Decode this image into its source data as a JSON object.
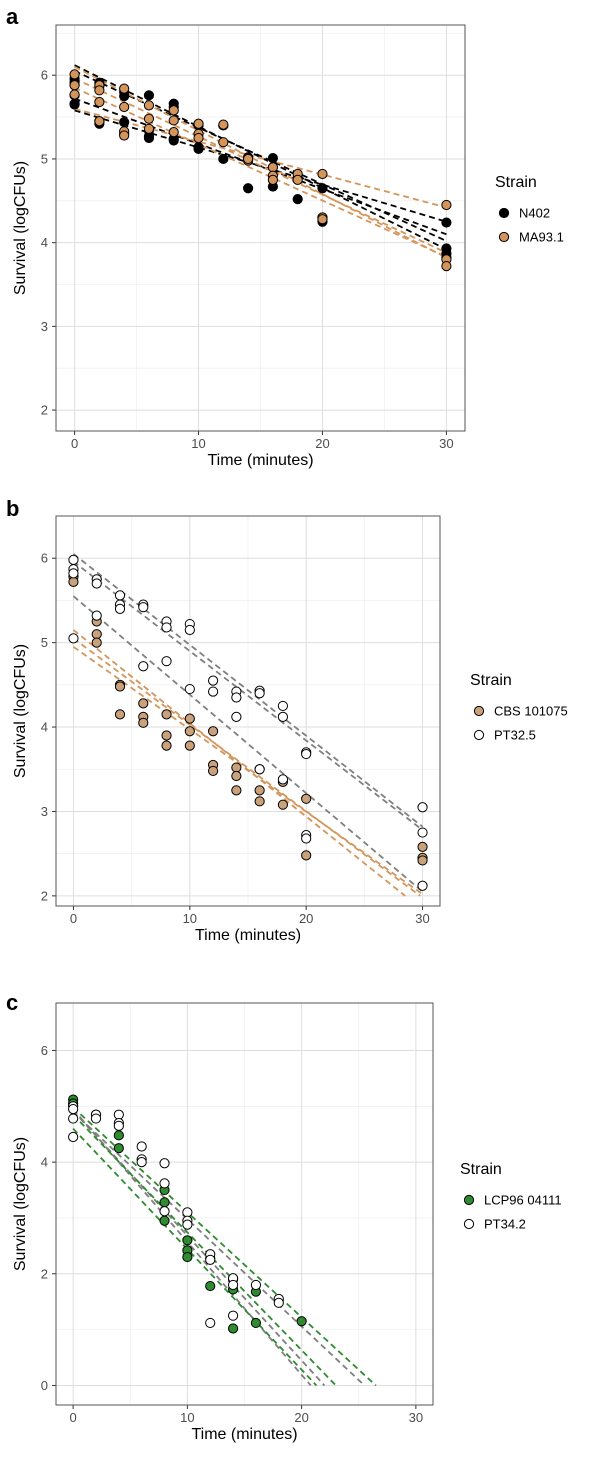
{
  "chart_data": [
    {
      "type": "scatter",
      "panel_label": "a",
      "xlabel": "Time (minutes)",
      "ylabel": "Survival (logCFUs)",
      "xlim": [
        -1.5,
        31.5
      ],
      "ylim": [
        1.75,
        6.6
      ],
      "xticks": [
        0,
        10,
        20,
        30
      ],
      "yticks": [
        2,
        3,
        4,
        5,
        6
      ],
      "grid": true,
      "legend": {
        "title": "Strain",
        "position": "right"
      },
      "series": [
        {
          "name": "N402",
          "fill": "#000000",
          "stroke": "#000000",
          "points": [
            [
              0,
              5.96
            ],
            [
              0,
              5.92
            ],
            [
              0,
              5.88
            ],
            [
              0,
              5.65
            ],
            [
              0,
              5.66
            ],
            [
              2,
              5.91
            ],
            [
              2,
              5.87
            ],
            [
              2,
              5.45
            ],
            [
              2,
              5.42
            ],
            [
              4,
              5.8
            ],
            [
              4,
              5.75
            ],
            [
              4,
              5.44
            ],
            [
              4,
              5.3
            ],
            [
              6,
              5.76
            ],
            [
              6,
              5.34
            ],
            [
              6,
              5.27
            ],
            [
              6,
              5.25
            ],
            [
              8,
              5.66
            ],
            [
              8,
              5.62
            ],
            [
              8,
              5.22
            ],
            [
              8,
              5.24
            ],
            [
              10,
              5.4
            ],
            [
              10,
              5.14
            ],
            [
              10,
              5.12
            ],
            [
              12,
              5.4
            ],
            [
              12,
              5.0
            ],
            [
              14,
              5.02
            ],
            [
              14,
              4.65
            ],
            [
              16,
              5.01
            ],
            [
              16,
              4.9
            ],
            [
              16,
              4.67
            ],
            [
              18,
              4.77
            ],
            [
              18,
              4.52
            ],
            [
              20,
              4.65
            ],
            [
              20,
              4.3
            ],
            [
              20,
              4.25
            ],
            [
              30,
              4.24
            ],
            [
              30,
              3.93
            ],
            [
              30,
              3.87
            ],
            [
              30,
              3.82
            ]
          ]
        },
        {
          "name": "MA93.1",
          "fill": "#d4955a",
          "stroke": "#000000",
          "points": [
            [
              0,
              6.01
            ],
            [
              0,
              5.88
            ],
            [
              0,
              5.76
            ],
            [
              0,
              5.77
            ],
            [
              2,
              5.88
            ],
            [
              2,
              5.82
            ],
            [
              2,
              5.68
            ],
            [
              2,
              5.45
            ],
            [
              4,
              5.84
            ],
            [
              4,
              5.62
            ],
            [
              4,
              5.33
            ],
            [
              4,
              5.28
            ],
            [
              6,
              5.64
            ],
            [
              6,
              5.48
            ],
            [
              6,
              5.36
            ],
            [
              8,
              5.58
            ],
            [
              8,
              5.46
            ],
            [
              8,
              5.32
            ],
            [
              10,
              5.42
            ],
            [
              10,
              5.3
            ],
            [
              10,
              5.25
            ],
            [
              12,
              5.41
            ],
            [
              12,
              5.2
            ],
            [
              14,
              4.98
            ],
            [
              14,
              5.0
            ],
            [
              16,
              4.9
            ],
            [
              16,
              4.8
            ],
            [
              16,
              4.75
            ],
            [
              18,
              4.82
            ],
            [
              18,
              4.75
            ],
            [
              20,
              4.82
            ],
            [
              20,
              4.3
            ],
            [
              20,
              4.28
            ],
            [
              30,
              4.45
            ],
            [
              30,
              3.8
            ],
            [
              30,
              3.72
            ]
          ]
        }
      ],
      "fit_lines": [
        {
          "color": "#000000",
          "x": [
            0,
            30
          ],
          "y": [
            6.12,
            3.92
          ]
        },
        {
          "color": "#000000",
          "x": [
            0,
            30
          ],
          "y": [
            6.05,
            4.02
          ]
        },
        {
          "color": "#000000",
          "x": [
            0,
            30
          ],
          "y": [
            5.72,
            4.1
          ]
        },
        {
          "color": "#000000",
          "x": [
            0,
            30
          ],
          "y": [
            5.58,
            4.25
          ]
        },
        {
          "color": "#d4955a",
          "x": [
            0,
            30
          ],
          "y": [
            6.1,
            3.82
          ]
        },
        {
          "color": "#d4955a",
          "x": [
            0,
            30
          ],
          "y": [
            5.96,
            3.88
          ]
        },
        {
          "color": "#d4955a",
          "x": [
            0,
            30
          ],
          "y": [
            5.85,
            3.83
          ]
        },
        {
          "color": "#d4955a",
          "x": [
            0,
            30
          ],
          "y": [
            5.6,
            4.42
          ]
        }
      ]
    },
    {
      "type": "scatter",
      "panel_label": "b",
      "xlabel": "Time (minutes)",
      "ylabel": "Survival (logCFUs)",
      "xlim": [
        -1.5,
        31.5
      ],
      "ylim": [
        1.88,
        6.5
      ],
      "xticks": [
        0,
        10,
        20,
        30
      ],
      "yticks": [
        2,
        3,
        4,
        5,
        6
      ],
      "grid": true,
      "legend": {
        "title": "Strain",
        "position": "right"
      },
      "series": [
        {
          "name": "CBS 101075",
          "fill": "#c9a27c",
          "stroke": "#000000",
          "points": [
            [
              0,
              5.78
            ],
            [
              0,
              5.72
            ],
            [
              2,
              5.25
            ],
            [
              2,
              5.1
            ],
            [
              2,
              5.0
            ],
            [
              4,
              4.5
            ],
            [
              4,
              4.48
            ],
            [
              4,
              4.15
            ],
            [
              6,
              4.28
            ],
            [
              6,
              4.12
            ],
            [
              6,
              4.05
            ],
            [
              8,
              4.15
            ],
            [
              8,
              3.9
            ],
            [
              8,
              3.78
            ],
            [
              10,
              4.1
            ],
            [
              10,
              3.95
            ],
            [
              10,
              3.78
            ],
            [
              12,
              3.95
            ],
            [
              12,
              3.55
            ],
            [
              12,
              3.48
            ],
            [
              14,
              3.52
            ],
            [
              14,
              3.42
            ],
            [
              14,
              3.25
            ],
            [
              16,
              3.5
            ],
            [
              16,
              3.25
            ],
            [
              16,
              3.12
            ],
            [
              18,
              3.35
            ],
            [
              18,
              3.08
            ],
            [
              20,
              3.15
            ],
            [
              20,
              2.48
            ],
            [
              30,
              2.58
            ],
            [
              30,
              2.45
            ],
            [
              30,
              2.42
            ]
          ]
        },
        {
          "name": "PT32.5",
          "fill": "#ffffff",
          "stroke": "#000000",
          "points": [
            [
              0,
              5.98
            ],
            [
              0,
              5.87
            ],
            [
              0,
              5.82
            ],
            [
              0,
              5.05
            ],
            [
              2,
              5.75
            ],
            [
              2,
              5.7
            ],
            [
              2,
              5.32
            ],
            [
              4,
              5.56
            ],
            [
              4,
              5.45
            ],
            [
              4,
              5.4
            ],
            [
              6,
              5.45
            ],
            [
              6,
              5.42
            ],
            [
              6,
              4.72
            ],
            [
              8,
              5.25
            ],
            [
              8,
              5.18
            ],
            [
              8,
              4.78
            ],
            [
              10,
              5.22
            ],
            [
              10,
              5.15
            ],
            [
              10,
              4.45
            ],
            [
              12,
              4.55
            ],
            [
              12,
              4.42
            ],
            [
              14,
              4.42
            ],
            [
              14,
              4.35
            ],
            [
              14,
              4.12
            ],
            [
              16,
              4.43
            ],
            [
              16,
              4.4
            ],
            [
              16,
              3.5
            ],
            [
              18,
              4.25
            ],
            [
              18,
              4.12
            ],
            [
              18,
              3.38
            ],
            [
              20,
              3.7
            ],
            [
              20,
              3.68
            ],
            [
              20,
              2.72
            ],
            [
              20,
              2.68
            ],
            [
              30,
              3.05
            ],
            [
              30,
              2.75
            ],
            [
              30,
              2.12
            ]
          ]
        }
      ],
      "fit_lines": [
        {
          "color": "#7f7f7f",
          "x": [
            0,
            30
          ],
          "y": [
            6.05,
            2.82
          ]
        },
        {
          "color": "#7f7f7f",
          "x": [
            0,
            30
          ],
          "y": [
            5.96,
            2.78
          ]
        },
        {
          "color": "#7f7f7f",
          "x": [
            0,
            30
          ],
          "y": [
            5.55,
            2.05
          ]
        },
        {
          "color": "#d4955a",
          "x": [
            0,
            28.5
          ],
          "y": [
            5.15,
            2.0
          ]
        },
        {
          "color": "#d4955a",
          "x": [
            0,
            29.8
          ],
          "y": [
            5.05,
            2.0
          ]
        },
        {
          "color": "#d4955a",
          "x": [
            0,
            30
          ],
          "y": [
            4.95,
            2.02
          ]
        }
      ]
    },
    {
      "type": "scatter",
      "panel_label": "c",
      "xlabel": "Time (minutes)",
      "ylabel": "Survival (logCFUs)",
      "xlim": [
        -1.5,
        31.5
      ],
      "ylim": [
        -0.35,
        6.85
      ],
      "xticks": [
        0,
        10,
        20,
        30
      ],
      "yticks": [
        0,
        2,
        4,
        6
      ],
      "grid": true,
      "legend": {
        "title": "Strain",
        "position": "right"
      },
      "series": [
        {
          "name": "LCP96 04111",
          "fill": "#2e8b2e",
          "stroke": "#000000",
          "points": [
            [
              0,
              5.12
            ],
            [
              0,
              5.05
            ],
            [
              2,
              4.85
            ],
            [
              4,
              4.48
            ],
            [
              4,
              4.25
            ],
            [
              8,
              3.5
            ],
            [
              8,
              3.28
            ],
            [
              8,
              2.95
            ],
            [
              10,
              2.6
            ],
            [
              10,
              2.42
            ],
            [
              10,
              2.3
            ],
            [
              12,
              2.28
            ],
            [
              12,
              1.78
            ],
            [
              14,
              1.9
            ],
            [
              14,
              1.72
            ],
            [
              14,
              1.02
            ],
            [
              16,
              1.68
            ],
            [
              16,
              1.12
            ],
            [
              20,
              1.15
            ]
          ]
        },
        {
          "name": "PT34.2",
          "fill": "#ffffff",
          "stroke": "#000000",
          "points": [
            [
              0,
              5.0
            ],
            [
              0,
              4.95
            ],
            [
              0,
              4.78
            ],
            [
              0,
              4.45
            ],
            [
              2,
              4.85
            ],
            [
              2,
              4.78
            ],
            [
              4,
              4.85
            ],
            [
              4,
              4.7
            ],
            [
              4,
              4.65
            ],
            [
              6,
              4.28
            ],
            [
              6,
              4.05
            ],
            [
              6,
              4.0
            ],
            [
              8,
              3.98
            ],
            [
              8,
              3.62
            ],
            [
              8,
              3.12
            ],
            [
              10,
              3.1
            ],
            [
              10,
              2.95
            ],
            [
              10,
              2.88
            ],
            [
              12,
              2.35
            ],
            [
              12,
              2.25
            ],
            [
              12,
              1.12
            ],
            [
              14,
              1.92
            ],
            [
              14,
              1.8
            ],
            [
              14,
              1.25
            ],
            [
              16,
              1.8
            ],
            [
              18,
              1.55
            ],
            [
              18,
              1.48
            ]
          ]
        }
      ],
      "fit_lines": [
        {
          "color": "#7f7f7f",
          "x": [
            0,
            20.8
          ],
          "y": [
            4.95,
            0.0
          ]
        },
        {
          "color": "#7f7f7f",
          "x": [
            0,
            22.0
          ],
          "y": [
            4.92,
            0.0
          ]
        },
        {
          "color": "#7f7f7f",
          "x": [
            0,
            25.5
          ],
          "y": [
            4.9,
            0.0
          ]
        },
        {
          "color": "#2e8b2e",
          "x": [
            0,
            21.3
          ],
          "y": [
            4.6,
            0.0
          ]
        },
        {
          "color": "#2e8b2e",
          "x": [
            0,
            23.0
          ],
          "y": [
            4.85,
            0.0
          ]
        },
        {
          "color": "#2e8b2e",
          "x": [
            0,
            26.5
          ],
          "y": [
            4.98,
            0.0
          ]
        }
      ]
    }
  ]
}
